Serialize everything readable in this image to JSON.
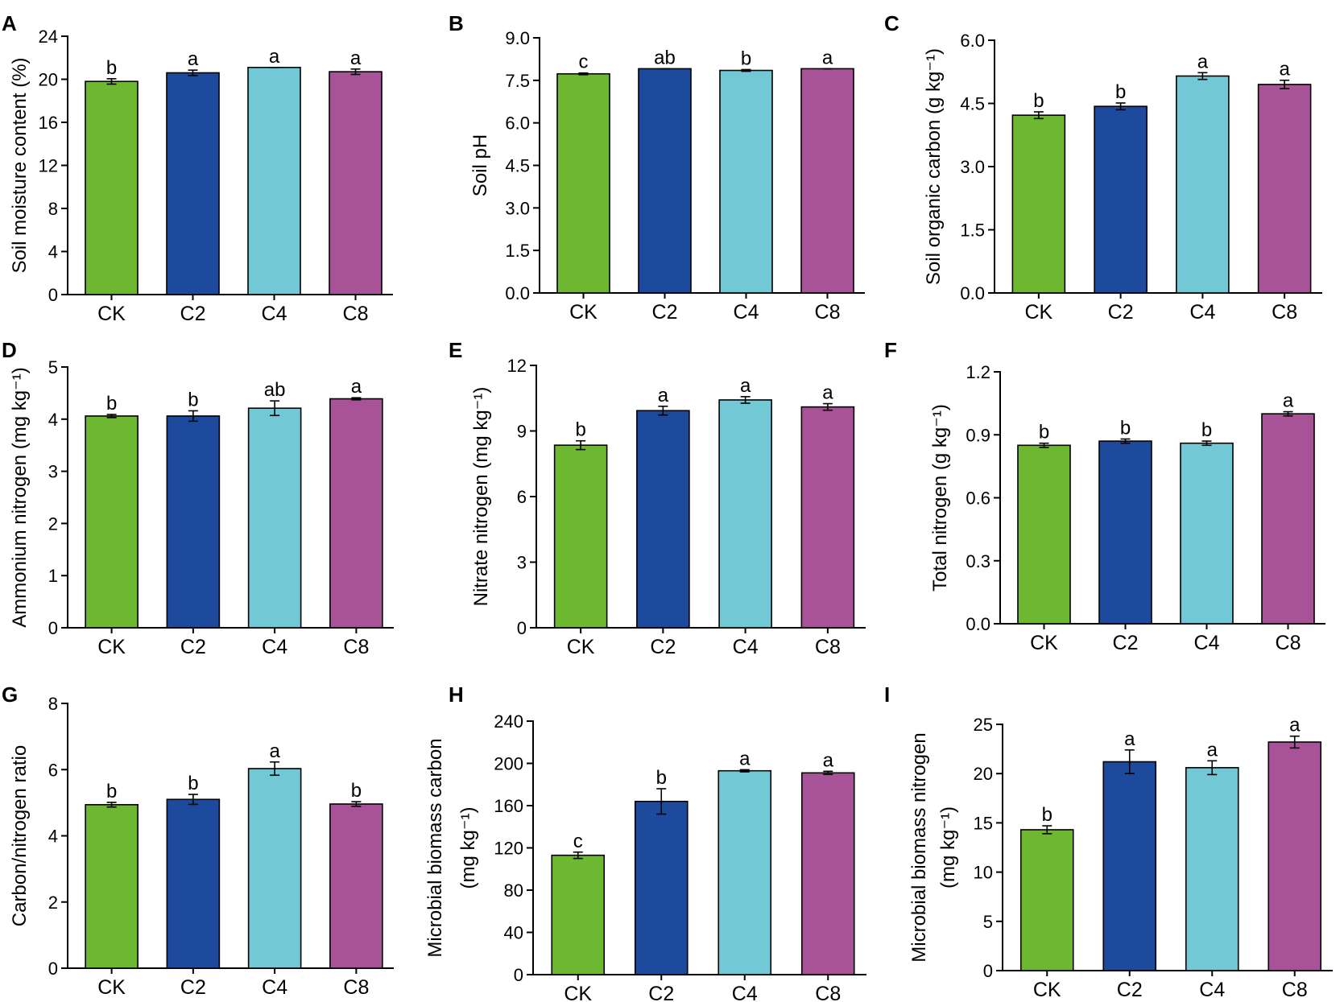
{
  "chart_data": [
    {
      "panel": "A",
      "type": "bar",
      "categories": [
        "CK",
        "C2",
        "C4",
        "C8"
      ],
      "values": [
        19.8,
        20.6,
        21.1,
        20.7
      ],
      "errors": [
        0.25,
        0.25,
        0.0,
        0.25
      ],
      "labels": [
        "b",
        "a",
        "a",
        "a"
      ],
      "ylabel": "Soil moisture content (%)",
      "ylim": [
        0,
        24
      ],
      "yticks": [
        "0",
        "4",
        "8",
        "12",
        "16",
        "20",
        "24"
      ]
    },
    {
      "panel": "B",
      "type": "bar",
      "categories": [
        "CK",
        "C2",
        "C4",
        "C8"
      ],
      "values": [
        7.73,
        7.91,
        7.85,
        7.91
      ],
      "errors": [
        0.03,
        0.0,
        0.03,
        0.0
      ],
      "labels": [
        "c",
        "ab",
        "b",
        "a"
      ],
      "ylabel": "Soil pH",
      "ylim": [
        0,
        9
      ],
      "yticks": [
        "0.0",
        "1.5",
        "3.0",
        "4.5",
        "6.0",
        "7.5",
        "9.0"
      ]
    },
    {
      "panel": "C",
      "type": "bar",
      "categories": [
        "CK",
        "C2",
        "C4",
        "C8"
      ],
      "values": [
        4.22,
        4.43,
        5.15,
        4.95
      ],
      "errors": [
        0.08,
        0.08,
        0.08,
        0.1
      ],
      "labels": [
        "b",
        "b",
        "a",
        "a"
      ],
      "ylabel": "Soil organic carbon (g kg⁻¹)",
      "ylim": [
        0,
        6
      ],
      "yticks": [
        "0.0",
        "1.5",
        "3.0",
        "4.5",
        "6.0"
      ]
    },
    {
      "panel": "D",
      "type": "bar",
      "categories": [
        "CK",
        "C2",
        "C4",
        "C8"
      ],
      "values": [
        4.06,
        4.06,
        4.21,
        4.39
      ],
      "errors": [
        0.03,
        0.1,
        0.14,
        0.02
      ],
      "labels": [
        "b",
        "b",
        "ab",
        "a"
      ],
      "ylabel": "Ammonium nitrogen (mg kg⁻¹)",
      "ylim": [
        0,
        5
      ],
      "yticks": [
        "0",
        "1",
        "2",
        "3",
        "4",
        "5"
      ]
    },
    {
      "panel": "E",
      "type": "bar",
      "categories": [
        "CK",
        "C2",
        "C4",
        "C8"
      ],
      "values": [
        8.35,
        9.93,
        10.42,
        10.1
      ],
      "errors": [
        0.2,
        0.2,
        0.15,
        0.15
      ],
      "labels": [
        "b",
        "a",
        "a",
        "a"
      ],
      "ylabel": "Nitrate nitrogen (mg kg⁻¹)",
      "ylim": [
        0,
        12
      ],
      "yticks": [
        "0",
        "3",
        "6",
        "9",
        "12"
      ]
    },
    {
      "panel": "F",
      "type": "bar",
      "categories": [
        "CK",
        "C2",
        "C4",
        "C8"
      ],
      "values": [
        0.85,
        0.87,
        0.86,
        1.0
      ],
      "errors": [
        0.01,
        0.01,
        0.01,
        0.01
      ],
      "labels": [
        "b",
        "b",
        "b",
        "a"
      ],
      "ylabel": "Total nitrogen (g kg⁻¹)",
      "ylim": [
        0,
        1.2
      ],
      "yticks": [
        "0.0",
        "0.3",
        "0.6",
        "0.9",
        "1.2"
      ]
    },
    {
      "panel": "G",
      "type": "bar",
      "categories": [
        "CK",
        "C2",
        "C4",
        "C8"
      ],
      "values": [
        4.94,
        5.1,
        6.03,
        4.96
      ],
      "errors": [
        0.07,
        0.15,
        0.2,
        0.07
      ],
      "labels": [
        "b",
        "b",
        "a",
        "b"
      ],
      "ylabel": "Carbon/nitrogen ratio",
      "ylim": [
        0,
        8
      ],
      "yticks": [
        "0",
        "2",
        "4",
        "6",
        "8"
      ]
    },
    {
      "panel": "H",
      "type": "bar",
      "categories": [
        "CK",
        "C2",
        "C4",
        "C8"
      ],
      "values": [
        113,
        164,
        193,
        191
      ],
      "errors": [
        3,
        12,
        1,
        1.5
      ],
      "labels": [
        "c",
        "b",
        "a",
        "a"
      ],
      "ylabel": "Microbial biomass carbon",
      "ylabel2": "(mg kg⁻¹)",
      "ylim": [
        0,
        240
      ],
      "yticks": [
        "0",
        "40",
        "80",
        "120",
        "160",
        "200",
        "240"
      ]
    },
    {
      "panel": "I",
      "type": "bar",
      "categories": [
        "CK",
        "C2",
        "C4",
        "C8"
      ],
      "values": [
        14.3,
        21.2,
        20.6,
        23.2
      ],
      "errors": [
        0.4,
        1.2,
        0.7,
        0.6
      ],
      "labels": [
        "b",
        "a",
        "a",
        "a"
      ],
      "ylabel": "Microbial biomass nitrogen",
      "ylabel2": "(mg kg⁻¹)",
      "ylim": [
        0,
        25
      ],
      "yticks": [
        "0",
        "5",
        "10",
        "15",
        "20",
        "25"
      ]
    }
  ],
  "colors": {
    "CK": "#6db830",
    "C2": "#1e4a9e",
    "C4": "#72c8d4",
    "C8": "#a85398"
  }
}
